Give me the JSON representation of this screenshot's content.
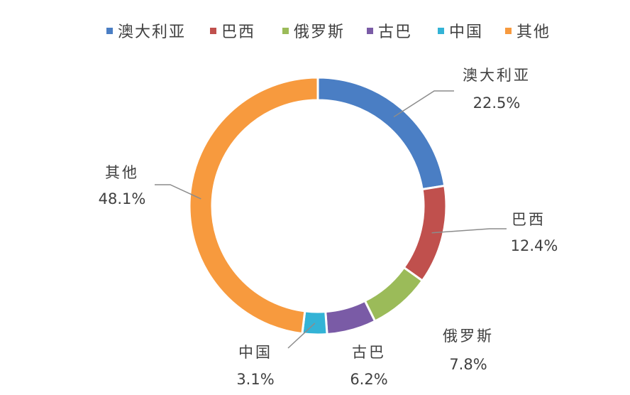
{
  "chart_data": {
    "type": "pie",
    "donut": true,
    "legend_position": "top",
    "categories": [
      "澳大利亚",
      "巴西",
      "俄罗斯",
      "古巴",
      "中国",
      "其他"
    ],
    "values": [
      22.5,
      12.4,
      7.8,
      6.2,
      3.1,
      48.1
    ],
    "labels_pct": [
      "22.5%",
      "12.4%",
      "7.8%",
      "6.2%",
      "3.1%",
      "48.1%"
    ],
    "colors": [
      "#4a7ec4",
      "#c0504d",
      "#9bbb59",
      "#7a5ba6",
      "#33b3d6",
      "#f79a3e"
    ]
  }
}
